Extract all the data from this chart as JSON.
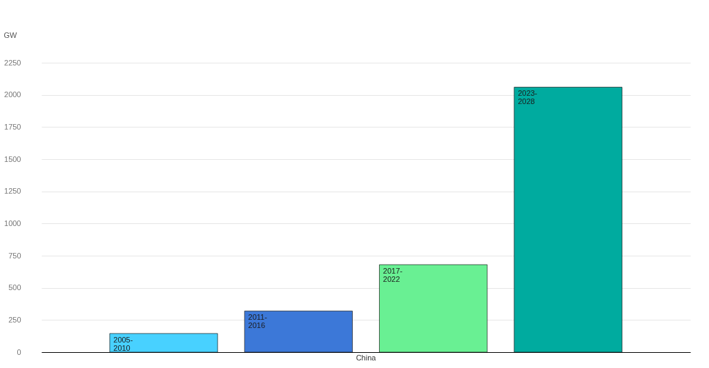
{
  "chart_data": {
    "type": "bar",
    "ylabel": "GW",
    "categories": [
      "China"
    ],
    "series": [
      {
        "name": "2005-2010",
        "color": "#48d1ff",
        "values": [
          145
        ]
      },
      {
        "name": "2011-2016",
        "color": "#3c78d8",
        "values": [
          320
        ]
      },
      {
        "name": "2017-2022",
        "color": "#69f093",
        "values": [
          680
        ]
      },
      {
        "name": "2023-2028",
        "color": "#00ab9f",
        "values": [
          2060
        ]
      }
    ],
    "ylim": [
      0,
      2250
    ],
    "yticks": [
      0,
      250,
      500,
      750,
      1000,
      1250,
      1500,
      1750,
      2000,
      2250
    ],
    "grid": "y",
    "legend": false
  }
}
